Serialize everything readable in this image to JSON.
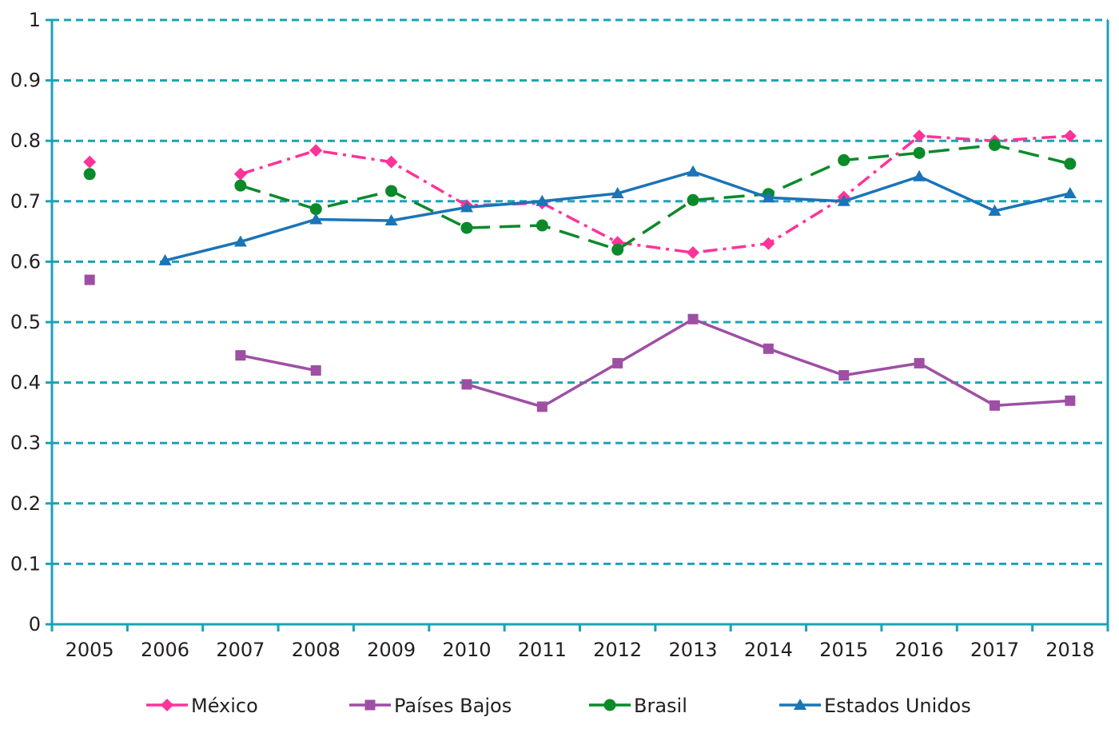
{
  "chart_data": {
    "type": "line",
    "categories": [
      "2005",
      "2006",
      "2007",
      "2008",
      "2009",
      "2010",
      "2011",
      "2012",
      "2013",
      "2014",
      "2015",
      "2016",
      "2017",
      "2018"
    ],
    "ylim": [
      0,
      1
    ],
    "yticks": [
      0,
      0.1,
      0.2,
      0.3,
      0.4,
      0.5,
      0.6,
      0.7,
      0.8,
      0.9,
      1
    ],
    "ytick_labels": [
      "0",
      "0.1",
      "0.2",
      "0.3",
      "0.4",
      "0.5",
      "0.6",
      "0.7",
      "0.8",
      "0.9",
      "1"
    ],
    "grid": true,
    "legend_position": "bottom",
    "series": [
      {
        "name": "México",
        "color": "#ff3399",
        "marker": "diamond",
        "line_style": "dash-dot",
        "values": [
          0.765,
          null,
          0.745,
          0.784,
          0.765,
          0.693,
          0.697,
          0.632,
          0.615,
          0.63,
          0.707,
          0.808,
          0.8,
          0.808
        ]
      },
      {
        "name": "Países Bajos",
        "color": "#9e4fa3",
        "marker": "square",
        "line_style": "solid",
        "values": [
          0.57,
          null,
          0.445,
          0.42,
          null,
          0.397,
          0.36,
          0.432,
          0.505,
          0.456,
          0.412,
          0.432,
          0.362,
          0.37
        ]
      },
      {
        "name": "Brasil",
        "color": "#0a8a2a",
        "marker": "circle",
        "line_style": "dashed",
        "values": [
          0.745,
          null,
          0.726,
          0.687,
          0.717,
          0.656,
          0.66,
          0.62,
          0.702,
          0.712,
          0.768,
          0.78,
          0.793,
          0.762
        ]
      },
      {
        "name": "Estados Unidos",
        "color": "#1a74b8",
        "marker": "triangle",
        "line_style": "solid",
        "values": [
          null,
          0.602,
          0.633,
          0.67,
          0.668,
          0.69,
          0.7,
          0.713,
          0.749,
          0.706,
          0.7,
          0.741,
          0.684,
          0.713
        ]
      }
    ]
  },
  "colors": {
    "axis": "#1aa3b5",
    "grid": "#1aa3b5",
    "text": "#231f20"
  }
}
